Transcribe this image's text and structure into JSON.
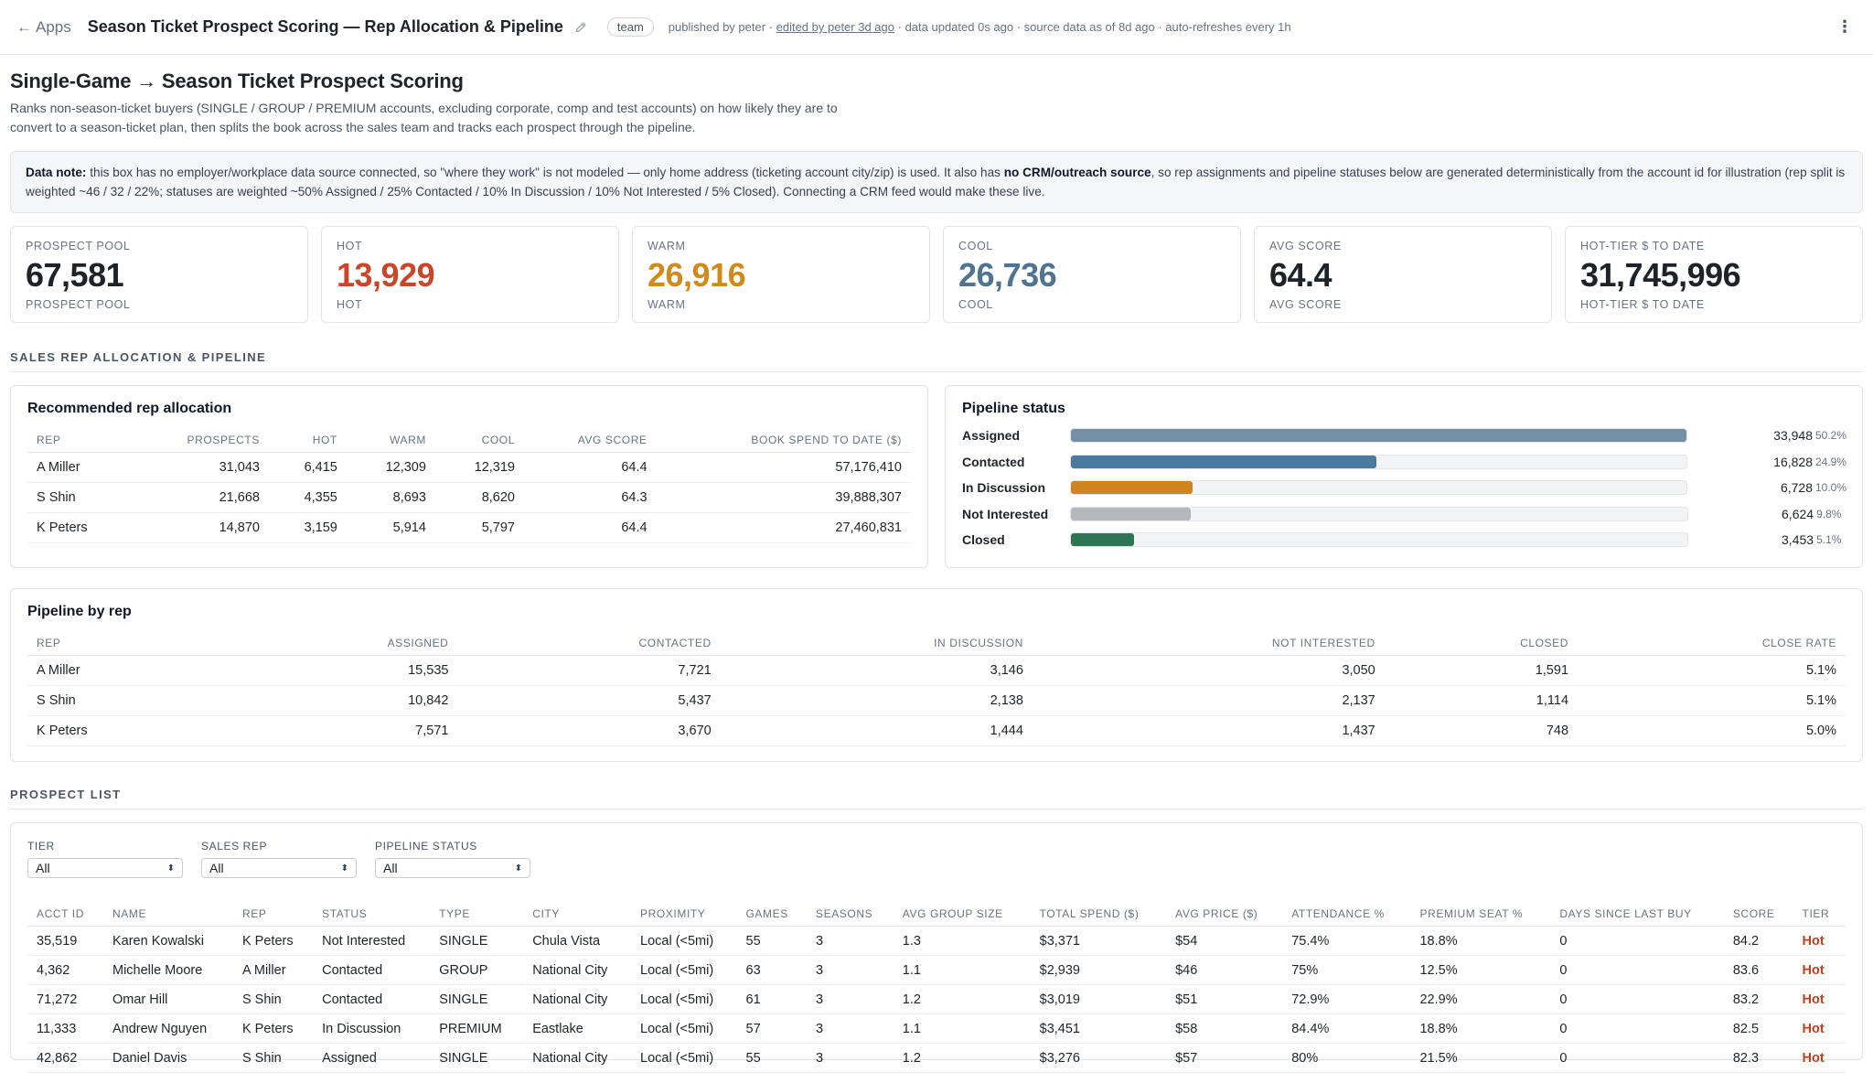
{
  "topbar": {
    "back_label": "Apps",
    "title": "Season Ticket Prospect Scoring — Rep Allocation & Pipeline",
    "badge": "team",
    "published": "published by peter ·",
    "edited": "edited by peter 3d ago",
    "meta_rest": "· data updated 0s ago · source data as of 8d ago · auto-refreshes every 1h"
  },
  "page": {
    "title": "Single-Game → Season Ticket Prospect Scoring",
    "description": "Ranks non-season-ticket buyers (SINGLE / GROUP / PREMIUM accounts, excluding corporate, comp and test accounts) on how likely they are to convert to a season-ticket plan, then splits the book across the sales team and tracks each prospect through the pipeline.",
    "note_label": "Data note:",
    "note_part1": " this box has no employer/workplace data source connected, so \"where they work\" is not modeled — only home address (ticketing account city/zip) is used. It also has ",
    "note_bold": "no CRM/outreach source",
    "note_part2": ", so rep assignments and pipeline statuses below are generated deterministically from the account id for illustration (rep split is weighted ~46 / 32 / 22%; statuses are weighted ~50% Assigned / 25% Contacted / 10% In Discussion / 10% Not Interested / 5% Closed). Connecting a CRM feed would make these live."
  },
  "kpis": [
    {
      "label": "PROSPECT POOL",
      "value": "67,581",
      "color": "#1f2328"
    },
    {
      "label": "HOT",
      "value": "13,929",
      "color": "#c8472a"
    },
    {
      "label": "WARM",
      "value": "26,916",
      "color": "#d08a1c"
    },
    {
      "label": "COOL",
      "value": "26,736",
      "color": "#4f7391"
    },
    {
      "label": "AVG SCORE",
      "value": "64.4",
      "color": "#1f2328"
    },
    {
      "label": "HOT-TIER $ TO DATE",
      "value": "31,745,996",
      "color": "#1f2328"
    }
  ],
  "sections": {
    "allocation": "SALES REP ALLOCATION & PIPELINE",
    "prospects": "PROSPECT LIST"
  },
  "rep_allocation": {
    "title": "Recommended rep allocation",
    "columns": [
      "REP",
      "PROSPECTS",
      "HOT",
      "WARM",
      "COOL",
      "AVG SCORE",
      "BOOK SPEND TO DATE ($)"
    ],
    "rows": [
      [
        "A Miller",
        "31,043",
        "6,415",
        "12,309",
        "12,319",
        "64.4",
        "57,176,410"
      ],
      [
        "S Shin",
        "21,668",
        "4,355",
        "8,693",
        "8,620",
        "64.3",
        "39,888,307"
      ],
      [
        "K Peters",
        "14,870",
        "3,159",
        "5,914",
        "5,797",
        "64.4",
        "27,460,831"
      ]
    ]
  },
  "pipeline_status": {
    "title": "Pipeline status",
    "rows": [
      {
        "label": "Assigned",
        "count": "33,948",
        "pct": "50.2%",
        "fraction": 1.0,
        "color": "#7690a6"
      },
      {
        "label": "Contacted",
        "count": "16,828",
        "pct": "24.9%",
        "fraction": 0.496,
        "color": "#4a7aa0"
      },
      {
        "label": "In Discussion",
        "count": "6,728",
        "pct": "10.0%",
        "fraction": 0.198,
        "color": "#cf8420"
      },
      {
        "label": "Not Interested",
        "count": "6,624",
        "pct": "9.8%",
        "fraction": 0.195,
        "color": "#b4b7bc"
      },
      {
        "label": "Closed",
        "count": "3,453",
        "pct": "5.1%",
        "fraction": 0.102,
        "color": "#2e7653"
      }
    ]
  },
  "pipeline_by_rep": {
    "title": "Pipeline by rep",
    "columns": [
      "REP",
      "ASSIGNED",
      "CONTACTED",
      "IN DISCUSSION",
      "NOT INTERESTED",
      "CLOSED",
      "CLOSE RATE"
    ],
    "rows": [
      [
        "A Miller",
        "15,535",
        "7,721",
        "3,146",
        "3,050",
        "1,591",
        "5.1%"
      ],
      [
        "S Shin",
        "10,842",
        "5,437",
        "2,138",
        "2,137",
        "1,114",
        "5.1%"
      ],
      [
        "K Peters",
        "7,571",
        "3,670",
        "1,444",
        "1,437",
        "748",
        "5.0%"
      ]
    ]
  },
  "filters": [
    {
      "label": "TIER",
      "value": "All"
    },
    {
      "label": "SALES REP",
      "value": "All"
    },
    {
      "label": "PIPELINE STATUS",
      "value": "All"
    }
  ],
  "prospect_table": {
    "columns": [
      "ACCT ID",
      "NAME",
      "REP",
      "STATUS",
      "TYPE",
      "CITY",
      "PROXIMITY",
      "GAMES",
      "SEASONS",
      "AVG GROUP SIZE",
      "TOTAL SPEND ($)",
      "AVG PRICE ($)",
      "ATTENDANCE %",
      "PREMIUM SEAT %",
      "DAYS SINCE LAST BUY",
      "SCORE",
      "TIER"
    ],
    "rows": [
      [
        "35,519",
        "Karen Kowalski",
        "K Peters",
        "Not Interested",
        "SINGLE",
        "Chula Vista",
        "Local (<5mi)",
        "55",
        "3",
        "1.3",
        "$3,371",
        "$54",
        "75.4%",
        "18.8%",
        "0",
        "84.2",
        "Hot"
      ],
      [
        "4,362",
        "Michelle Moore",
        "A Miller",
        "Contacted",
        "GROUP",
        "National City",
        "Local (<5mi)",
        "63",
        "3",
        "1.1",
        "$2,939",
        "$46",
        "75%",
        "12.5%",
        "0",
        "83.6",
        "Hot"
      ],
      [
        "71,272",
        "Omar Hill",
        "S Shin",
        "Contacted",
        "SINGLE",
        "National City",
        "Local (<5mi)",
        "61",
        "3",
        "1.2",
        "$3,019",
        "$51",
        "72.9%",
        "22.9%",
        "0",
        "83.2",
        "Hot"
      ],
      [
        "11,333",
        "Andrew Nguyen",
        "K Peters",
        "In Discussion",
        "PREMIUM",
        "Eastlake",
        "Local (<5mi)",
        "57",
        "3",
        "1.1",
        "$3,451",
        "$58",
        "84.4%",
        "18.8%",
        "0",
        "82.5",
        "Hot"
      ],
      [
        "42,862",
        "Daniel Davis",
        "S Shin",
        "Assigned",
        "SINGLE",
        "National City",
        "Local (<5mi)",
        "55",
        "3",
        "1.2",
        "$3,276",
        "$57",
        "80%",
        "21.5%",
        "0",
        "82.3",
        "Hot"
      ]
    ]
  }
}
